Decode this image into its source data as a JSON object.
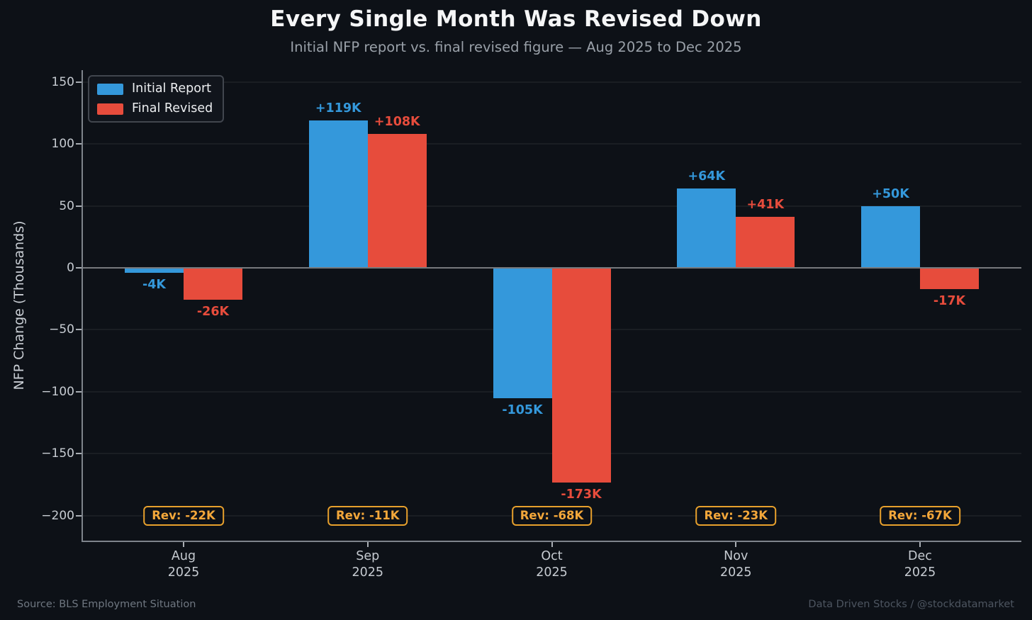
{
  "title": "Every Single Month Was Revised Down",
  "subtitle": "Initial NFP report vs. final revised figure — Aug 2025 to Dec 2025",
  "legend": [
    {
      "label": "Initial Report",
      "color": "#3498db"
    },
    {
      "label": "Final Revised",
      "color": "#e74c3c"
    }
  ],
  "footer": {
    "source": "Source: BLS Employment Situation",
    "credit": "Data Driven Stocks / @stockdatamarket"
  },
  "colors": {
    "background": "#0d1117",
    "title_text": "#f5f6f7",
    "muted_text": "#99a0a8",
    "axis_text": "#c6cbd1",
    "blue": "#3498db",
    "red": "#e74c3c",
    "revision_orange": "#f3a73a"
  },
  "chart_data": {
    "type": "bar",
    "categories": [
      "Aug 2025",
      "Sep 2025",
      "Oct 2025",
      "Nov 2025",
      "Dec 2025"
    ],
    "series": [
      {
        "name": "Initial Report",
        "color": "#3498db",
        "values": [
          -4,
          119,
          -105,
          64,
          50
        ],
        "labels": [
          "-4K",
          "+119K",
          "-105K",
          "+64K",
          "+50K"
        ]
      },
      {
        "name": "Final Revised",
        "color": "#e74c3c",
        "values": [
          -26,
          108,
          -173,
          41,
          -17
        ],
        "labels": [
          "-26K",
          "+108K",
          "-173K",
          "+41K",
          "-17K"
        ]
      }
    ],
    "revisions": [
      "Rev: -22K",
      "Rev: -11K",
      "Rev: -68K",
      "Rev: -23K",
      "Rev: -67K"
    ],
    "title": "Every Single Month Was Revised Down",
    "xlabel": "",
    "ylabel": "NFP Change (Thousands)",
    "yticks": [
      150,
      100,
      50,
      0,
      -50,
      -100,
      -150,
      -200
    ],
    "ylim": [
      -220,
      160
    ],
    "grid": true,
    "legend_position": "upper left"
  }
}
